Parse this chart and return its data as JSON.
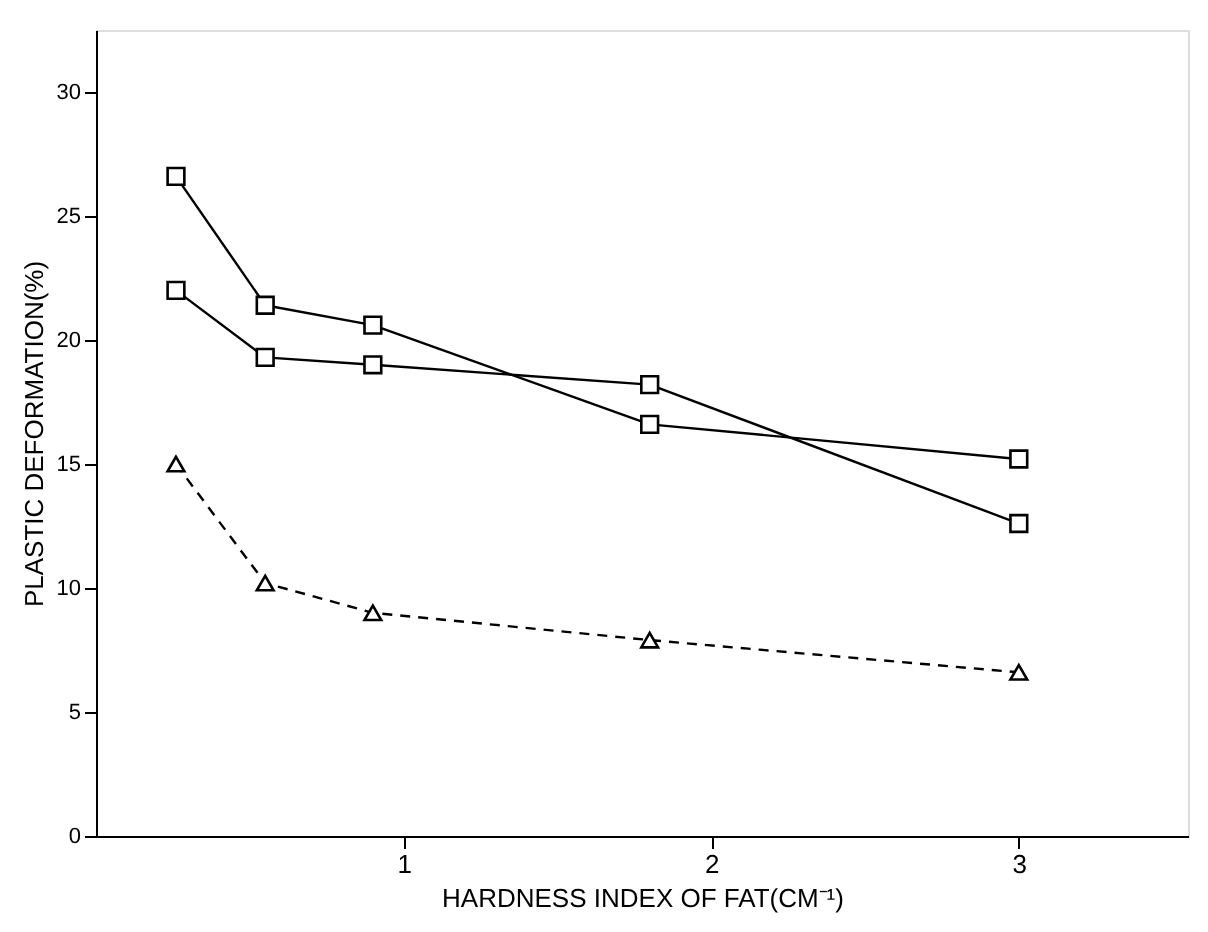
{
  "chart_data": {
    "type": "line",
    "xlabel": "HARDNESS INDEX OF FAT(CM⁻¹)",
    "ylabel": "PLASTIC DEFORMATION(%)",
    "x": [
      0.26,
      0.55,
      0.9,
      1.8,
      3.0
    ],
    "series": [
      {
        "color": "#000000",
        "marker": "square",
        "line_style": "solid",
        "values": [
          26.6,
          21.4,
          20.6,
          16.6,
          15.2
        ]
      },
      {
        "color": "#000000",
        "marker": "square",
        "line_style": "solid",
        "values": [
          22.0,
          19.3,
          19.0,
          18.2,
          12.6
        ]
      },
      {
        "color": "#000000",
        "marker": "triangle",
        "line_style": "dashed",
        "values": [
          15.0,
          10.2,
          9.0,
          7.9,
          6.6
        ]
      }
    ],
    "xlim": [
      0,
      3.55
    ],
    "ylim": [
      0,
      32.5
    ],
    "xticks": [
      1,
      2,
      3
    ],
    "yticks": [
      0,
      5,
      10,
      15,
      20,
      25,
      30
    ],
    "grid": false,
    "legend": false
  }
}
